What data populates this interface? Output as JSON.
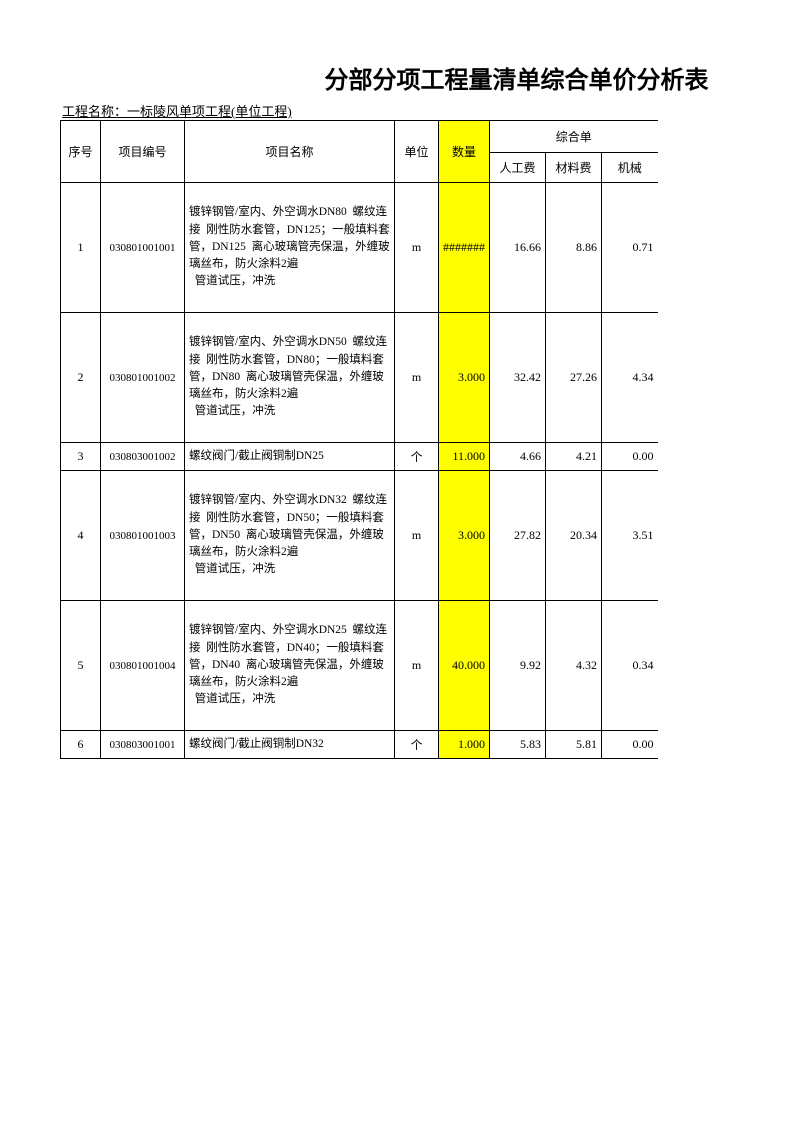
{
  "title": "分部分项工程量清单综合单价分析表",
  "project_label": "工程名称：一标陵风单项工程(单位工程)",
  "header": {
    "seq": "序号",
    "code": "项目编号",
    "name": "项目名称",
    "unit": "单位",
    "qty": "数量",
    "composite_group": "综合单",
    "labor": "人工费",
    "material": "材料费",
    "machinery": "机械"
  },
  "rows": [
    {
      "seq": "1",
      "code": "030801001001",
      "name": "镀锌钢管/室内、外空调水DN80  螺纹连接  刚性防水套管，DN125；一般填料套管，DN125  离心玻璃管壳保温，外缠玻璃丝布，防火涂料2遍\n  管道试压，冲洗",
      "unit": "m",
      "qty": "#######",
      "labor": "16.66",
      "material": "8.86",
      "machinery": "0.71",
      "tall": true
    },
    {
      "seq": "2",
      "code": "030801001002",
      "name": "镀锌钢管/室内、外空调水DN50  螺纹连接  刚性防水套管，DN80；一般填料套管，DN80  离心玻璃管壳保温，外缠玻璃丝布，防火涂料2遍\n  管道试压，冲洗",
      "unit": "m",
      "qty": "3.000",
      "labor": "32.42",
      "material": "27.26",
      "machinery": "4.34",
      "tall": true
    },
    {
      "seq": "3",
      "code": "030803001002",
      "name": "螺纹阀门/截止阀铜制DN25",
      "unit": "个",
      "qty": "11.000",
      "labor": "4.66",
      "material": "4.21",
      "machinery": "0.00",
      "tall": false
    },
    {
      "seq": "4",
      "code": "030801001003",
      "name": "镀锌钢管/室内、外空调水DN32  螺纹连接  刚性防水套管，DN50；一般填料套管，DN50  离心玻璃管壳保温，外缠玻璃丝布，防火涂料2遍\n  管道试压，冲洗",
      "unit": "m",
      "qty": "3.000",
      "labor": "27.82",
      "material": "20.34",
      "machinery": "3.51",
      "tall": true
    },
    {
      "seq": "5",
      "code": "030801001004",
      "name": "镀锌钢管/室内、外空调水DN25  螺纹连接  刚性防水套管，DN40；一般填料套管，DN40  离心玻璃管壳保温，外缠玻璃丝布，防火涂料2遍\n  管道试压，冲洗",
      "unit": "m",
      "qty": "40.000",
      "labor": "9.92",
      "material": "4.32",
      "machinery": "0.34",
      "tall": true
    },
    {
      "seq": "6",
      "code": "030803001001",
      "name": "螺纹阀门/截止阀铜制DN32",
      "unit": "个",
      "qty": "1.000",
      "labor": "5.83",
      "material": "5.81",
      "machinery": "0.00",
      "tall": false
    }
  ]
}
